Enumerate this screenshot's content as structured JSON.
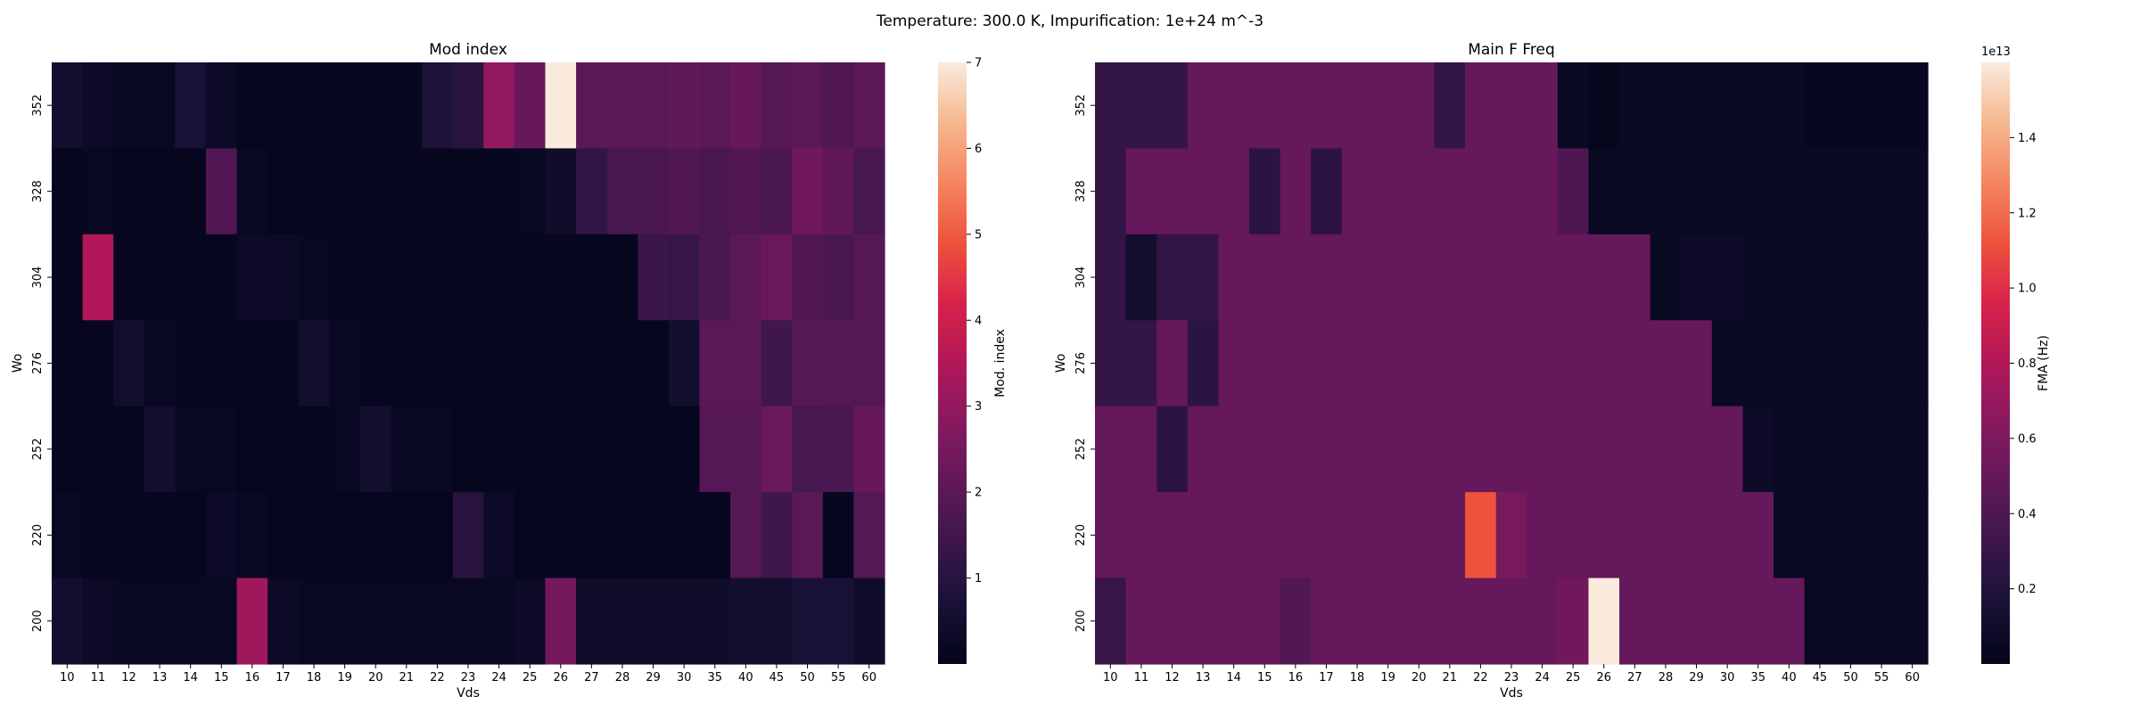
{
  "figure": {
    "suptitle": "Temperature: 300.0 K, Impurification: 1e+24 m^-3"
  },
  "chart_data": [
    {
      "type": "heatmap",
      "title": "Mod index",
      "xlabel": "Vds",
      "ylabel": "Wo",
      "x_categories": [
        "10",
        "11",
        "12",
        "13",
        "14",
        "15",
        "16",
        "17",
        "18",
        "19",
        "20",
        "21",
        "22",
        "23",
        "24",
        "25",
        "26",
        "27",
        "28",
        "29",
        "30",
        "35",
        "40",
        "45",
        "50",
        "55",
        "60"
      ],
      "y_categories": [
        "352",
        "328",
        "304",
        "276",
        "252",
        "220",
        "200"
      ],
      "values": [
        [
          0.5,
          0.3,
          0.2,
          0.2,
          0.7,
          0.3,
          0.1,
          0.1,
          0.1,
          0.1,
          0.1,
          0.1,
          0.8,
          1.0,
          3.0,
          2.2,
          7.0,
          2.0,
          2.0,
          2.0,
          2.1,
          2.0,
          2.2,
          1.9,
          2.0,
          1.8,
          2.0
        ],
        [
          0.1,
          0.2,
          0.1,
          0.1,
          0.1,
          1.8,
          0.2,
          0.1,
          0.1,
          0.1,
          0.1,
          0.1,
          0.1,
          0.1,
          0.1,
          0.2,
          0.4,
          1.2,
          1.6,
          1.7,
          1.8,
          1.7,
          1.8,
          1.7,
          2.4,
          2.1,
          1.6
        ],
        [
          0.1,
          3.5,
          0.1,
          0.1,
          0.1,
          0.1,
          0.3,
          0.3,
          0.2,
          0.1,
          0.1,
          0.1,
          0.1,
          0.1,
          0.1,
          0.1,
          0.1,
          0.1,
          0.1,
          1.4,
          1.3,
          1.7,
          2.0,
          2.3,
          1.8,
          1.7,
          1.9
        ],
        [
          0.1,
          0.1,
          0.5,
          0.2,
          0.1,
          0.1,
          0.1,
          0.1,
          0.5,
          0.2,
          0.1,
          0.1,
          0.1,
          0.1,
          0.1,
          0.1,
          0.1,
          0.1,
          0.1,
          0.1,
          0.5,
          2.0,
          2.0,
          1.5,
          1.9,
          1.9,
          1.9
        ],
        [
          0.1,
          0.1,
          0.1,
          0.5,
          0.2,
          0.2,
          0.1,
          0.1,
          0.1,
          0.2,
          0.5,
          0.2,
          0.2,
          0.1,
          0.1,
          0.1,
          0.1,
          0.1,
          0.1,
          0.1,
          0.1,
          1.9,
          1.9,
          2.3,
          1.6,
          1.7,
          2.2
        ],
        [
          0.2,
          0.1,
          0.1,
          0.1,
          0.1,
          0.3,
          0.2,
          0.1,
          0.1,
          0.1,
          0.1,
          0.1,
          0.1,
          1.0,
          0.3,
          0.1,
          0.1,
          0.1,
          0.1,
          0.1,
          0.1,
          0.1,
          1.9,
          1.5,
          2.0,
          0.1,
          1.9
        ],
        [
          0.5,
          0.3,
          0.2,
          0.2,
          0.2,
          0.2,
          3.2,
          0.3,
          0.2,
          0.2,
          0.2,
          0.2,
          0.2,
          0.2,
          0.2,
          0.3,
          2.5,
          0.4,
          0.4,
          0.4,
          0.4,
          0.4,
          0.5,
          0.5,
          0.7,
          0.7,
          0.4
        ]
      ],
      "vmin": 0,
      "vmax": 7,
      "colorbar": {
        "label": "Mod. index",
        "ticks": [
          1,
          2,
          3,
          4,
          5,
          6,
          7
        ],
        "tick_labels": [
          "1",
          "2",
          "3",
          "4",
          "5",
          "6",
          "7"
        ],
        "offset_text": ""
      }
    },
    {
      "type": "heatmap",
      "title": "Main F Freq",
      "xlabel": "Vds",
      "ylabel": "Wo",
      "x_categories": [
        "10",
        "11",
        "12",
        "13",
        "14",
        "15",
        "16",
        "17",
        "18",
        "19",
        "20",
        "21",
        "22",
        "23",
        "24",
        "25",
        "26",
        "27",
        "28",
        "29",
        "30",
        "35",
        "40",
        "45",
        "50",
        "55",
        "60"
      ],
      "y_categories": [
        "352",
        "328",
        "304",
        "276",
        "252",
        "220",
        "200"
      ],
      "values": [
        [
          0.28,
          0.28,
          0.28,
          0.5,
          0.5,
          0.5,
          0.5,
          0.5,
          0.5,
          0.5,
          0.5,
          0.28,
          0.5,
          0.5,
          0.5,
          0.05,
          0.02,
          0.05,
          0.05,
          0.05,
          0.05,
          0.05,
          0.05,
          0.03,
          0.03,
          0.03,
          0.03
        ],
        [
          0.28,
          0.5,
          0.5,
          0.5,
          0.5,
          0.25,
          0.5,
          0.25,
          0.5,
          0.5,
          0.5,
          0.5,
          0.5,
          0.5,
          0.5,
          0.4,
          0.05,
          0.05,
          0.05,
          0.05,
          0.05,
          0.05,
          0.05,
          0.05,
          0.05,
          0.05,
          0.05
        ],
        [
          0.28,
          0.12,
          0.28,
          0.28,
          0.5,
          0.5,
          0.5,
          0.5,
          0.5,
          0.5,
          0.5,
          0.5,
          0.5,
          0.5,
          0.5,
          0.5,
          0.5,
          0.5,
          0.05,
          0.08,
          0.08,
          0.05,
          0.05,
          0.05,
          0.05,
          0.05,
          0.05
        ],
        [
          0.28,
          0.28,
          0.5,
          0.25,
          0.5,
          0.5,
          0.5,
          0.5,
          0.5,
          0.5,
          0.5,
          0.5,
          0.5,
          0.5,
          0.5,
          0.5,
          0.5,
          0.5,
          0.5,
          0.5,
          0.05,
          0.05,
          0.05,
          0.05,
          0.05,
          0.05,
          0.05
        ],
        [
          0.5,
          0.5,
          0.25,
          0.5,
          0.5,
          0.5,
          0.5,
          0.5,
          0.5,
          0.5,
          0.5,
          0.5,
          0.5,
          0.5,
          0.5,
          0.5,
          0.5,
          0.5,
          0.5,
          0.5,
          0.5,
          0.08,
          0.05,
          0.05,
          0.05,
          0.05,
          0.05
        ],
        [
          0.5,
          0.5,
          0.5,
          0.5,
          0.5,
          0.5,
          0.5,
          0.5,
          0.5,
          0.5,
          0.5,
          0.5,
          1.12,
          0.58,
          0.5,
          0.5,
          0.5,
          0.5,
          0.5,
          0.5,
          0.5,
          0.5,
          0.05,
          0.05,
          0.05,
          0.05,
          0.05
        ],
        [
          0.3,
          0.5,
          0.5,
          0.5,
          0.5,
          0.5,
          0.42,
          0.5,
          0.5,
          0.5,
          0.5,
          0.5,
          0.5,
          0.5,
          0.5,
          0.55,
          1.6,
          0.5,
          0.5,
          0.5,
          0.5,
          0.5,
          0.5,
          0.05,
          0.05,
          0.05,
          0.05
        ]
      ],
      "vmin": 0.0,
      "vmax": 1.6,
      "colorbar": {
        "label": "FMA (Hz)",
        "ticks": [
          0.2,
          0.4,
          0.6,
          0.8,
          1.0,
          1.2,
          1.4
        ],
        "tick_labels": [
          "0.2",
          "0.4",
          "0.6",
          "0.8",
          "1.0",
          "1.2",
          "1.4"
        ],
        "offset_text": "1e13"
      }
    }
  ]
}
